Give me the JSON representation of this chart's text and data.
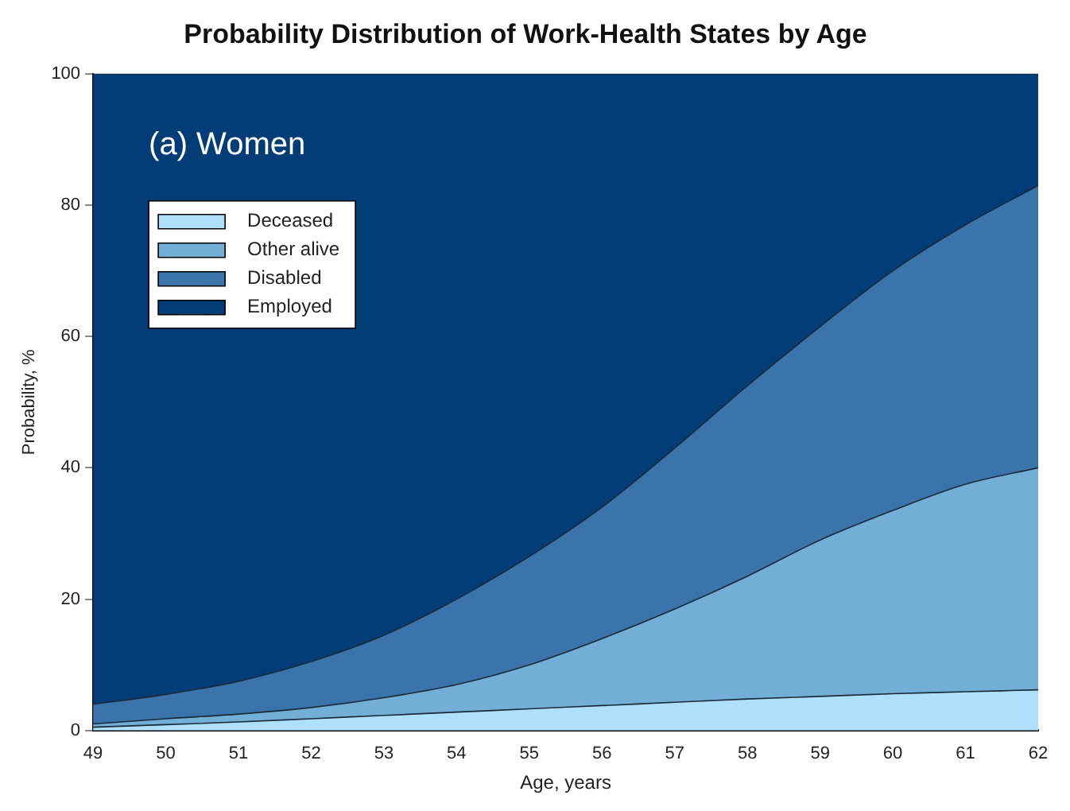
{
  "chart_data": {
    "type": "area",
    "title": "Probability Distribution of Work-Health States by Age",
    "xlabel": "Age, years",
    "ylabel": "Probability, %",
    "annotations": [
      "(a) Women"
    ],
    "stacked": true,
    "legend": "top left",
    "grid": false,
    "x": [
      49,
      50,
      51,
      52,
      53,
      54,
      55,
      56,
      57,
      58,
      59,
      60,
      61,
      62
    ],
    "xlim": [
      49,
      62
    ],
    "xticks": [
      49,
      50,
      51,
      52,
      53,
      54,
      55,
      56,
      57,
      58,
      59,
      60,
      61,
      62
    ],
    "ylim": [
      0,
      100
    ],
    "yticks": [
      0,
      20,
      40,
      60,
      80,
      100
    ],
    "series": [
      {
        "name": "Deceased",
        "color": "#aee0fb",
        "values": [
          0.5,
          0.9,
          1.3,
          1.8,
          2.3,
          2.8,
          3.3,
          3.8,
          4.3,
          4.8,
          5.2,
          5.6,
          5.9,
          6.2
        ]
      },
      {
        "name": "Other alive",
        "color": "#72aed6",
        "values": [
          0.5,
          0.9,
          1.2,
          1.7,
          2.7,
          4.2,
          6.7,
          10.2,
          14.2,
          18.7,
          23.8,
          27.9,
          31.6,
          33.8
        ]
      },
      {
        "name": "Disabled",
        "color": "#3a74ab",
        "values": [
          3,
          3.7,
          5,
          7,
          9.5,
          13,
          16.5,
          20,
          24.5,
          29,
          32.5,
          36.5,
          39.5,
          43
        ]
      },
      {
        "name": "Employed",
        "color": "#023d78",
        "values": [
          96,
          94.5,
          92.5,
          89.5,
          85.5,
          80,
          73.5,
          66,
          57,
          47.5,
          38.5,
          30,
          23,
          17
        ]
      }
    ]
  }
}
